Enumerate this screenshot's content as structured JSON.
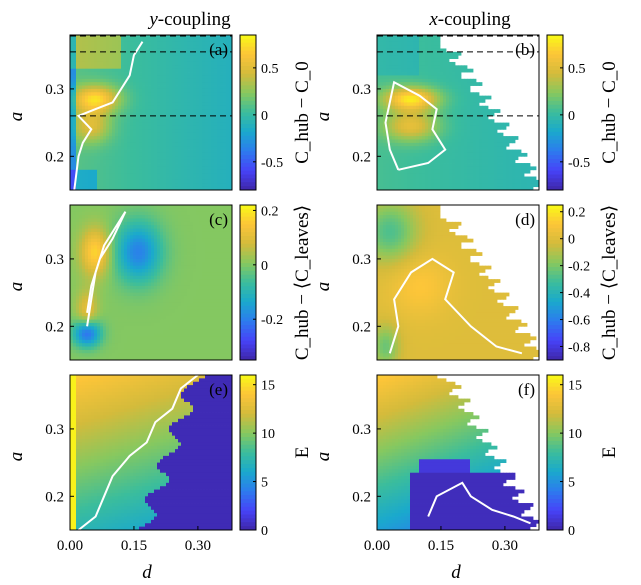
{
  "figure": {
    "col_titles": [
      "y-coupling",
      "x-coupling"
    ],
    "x_axis_label": "d",
    "y_axis_label": "a"
  },
  "colors": {
    "colormap": [
      "#3e26a8",
      "#4743f8",
      "#2d7bee",
      "#1aa9cd",
      "#3bbd9c",
      "#87c85f",
      "#d4bb3b",
      "#fcc539",
      "#f9fb15"
    ],
    "contour": "#ffffff",
    "dashed": "#000000"
  },
  "chart_data": [
    {
      "type": "heatmap",
      "panel": "(a)",
      "coupling": "y-coupling",
      "xlim": [
        0,
        0.38
      ],
      "ylim": [
        0.15,
        0.38
      ],
      "x_ticks": [],
      "x_tick_labels": [],
      "y_ticks": [
        0.2,
        0.3
      ],
      "y_tick_labels": [
        "0.2",
        "0.3"
      ],
      "colorbar": {
        "label": "C_hub − C_0",
        "range": [
          -0.8,
          0.85
        ],
        "ticks": [
          0.5,
          0,
          -0.5
        ],
        "tick_labels": [
          "0.5",
          "0",
          "-0.5"
        ]
      },
      "dashed_lines_y": [
        0.355,
        0.26,
        0.38
      ],
      "field": "a_diff"
    },
    {
      "type": "heatmap",
      "panel": "(b)",
      "coupling": "x-coupling",
      "xlim": [
        0,
        0.38
      ],
      "ylim": [
        0.15,
        0.38
      ],
      "x_ticks": [],
      "x_tick_labels": [],
      "y_ticks": [
        0.2,
        0.3
      ],
      "y_tick_labels": [
        "0.2",
        "0.3"
      ],
      "colorbar": {
        "label": "C_hub − C_0",
        "range": [
          -0.8,
          0.85
        ],
        "ticks": [
          0.5,
          0,
          -0.5
        ],
        "tick_labels": [
          "0.5",
          "0",
          "-0.5"
        ]
      },
      "dashed_lines_y": [
        0.355,
        0.26,
        0.38
      ],
      "field": "b_diff"
    },
    {
      "type": "heatmap",
      "panel": "(c)",
      "coupling": "y-coupling",
      "xlim": [
        0,
        0.38
      ],
      "ylim": [
        0.15,
        0.38
      ],
      "x_ticks": [],
      "x_tick_labels": [],
      "y_ticks": [
        0.2,
        0.3
      ],
      "y_tick_labels": [
        "0.2",
        "0.3"
      ],
      "colorbar": {
        "label": "C_hub − ⟨C_leaves⟩",
        "range": [
          -0.35,
          0.22
        ],
        "ticks": [
          0.2,
          0,
          -0.2
        ],
        "tick_labels": [
          "0.2",
          "0",
          "-0.2"
        ]
      },
      "dashed_lines_y": [],
      "field": "c_leaves"
    },
    {
      "type": "heatmap",
      "panel": "(d)",
      "coupling": "x-coupling",
      "xlim": [
        0,
        0.38
      ],
      "ylim": [
        0.15,
        0.38
      ],
      "x_ticks": [],
      "x_tick_labels": [],
      "y_ticks": [
        0.2,
        0.3
      ],
      "y_tick_labels": [
        "0.2",
        "0.3"
      ],
      "colorbar": {
        "label": "C_hub − ⟨C_leaves⟩",
        "range": [
          -0.9,
          0.25
        ],
        "ticks": [
          0.2,
          0,
          -0.2,
          -0.4,
          -0.6,
          -0.8
        ],
        "tick_labels": [
          "0.2",
          "0",
          "-0.2",
          "-0.4",
          "-0.6",
          "-0.8"
        ]
      },
      "dashed_lines_y": [],
      "field": "d_leaves"
    },
    {
      "type": "heatmap",
      "panel": "(e)",
      "coupling": "y-coupling",
      "xlim": [
        0,
        0.38
      ],
      "ylim": [
        0.15,
        0.38
      ],
      "x_ticks": [
        0,
        0.15,
        0.3
      ],
      "x_tick_labels": [
        "0.00",
        "0.15",
        "0.30"
      ],
      "y_ticks": [
        0.2,
        0.3
      ],
      "y_tick_labels": [
        "0.2",
        "0.3"
      ],
      "colorbar": {
        "label": "E",
        "range": [
          0,
          16
        ],
        "ticks": [
          15,
          10,
          5,
          0
        ],
        "tick_labels": [
          "15",
          "10",
          "5",
          "0"
        ]
      },
      "dashed_lines_y": [],
      "field": "e_energy"
    },
    {
      "type": "heatmap",
      "panel": "(f)",
      "coupling": "x-coupling",
      "xlim": [
        0,
        0.38
      ],
      "ylim": [
        0.15,
        0.38
      ],
      "x_ticks": [
        0,
        0.15,
        0.3
      ],
      "x_tick_labels": [
        "0.00",
        "0.15",
        "0.30"
      ],
      "y_ticks": [
        0.2,
        0.3
      ],
      "y_tick_labels": [
        "0.2",
        "0.3"
      ],
      "colorbar": {
        "label": "E",
        "range": [
          0,
          16
        ],
        "ticks": [
          15,
          10,
          5,
          0
        ],
        "tick_labels": [
          "15",
          "10",
          "5",
          "0"
        ]
      },
      "dashed_lines_y": [],
      "field": "f_energy"
    }
  ]
}
